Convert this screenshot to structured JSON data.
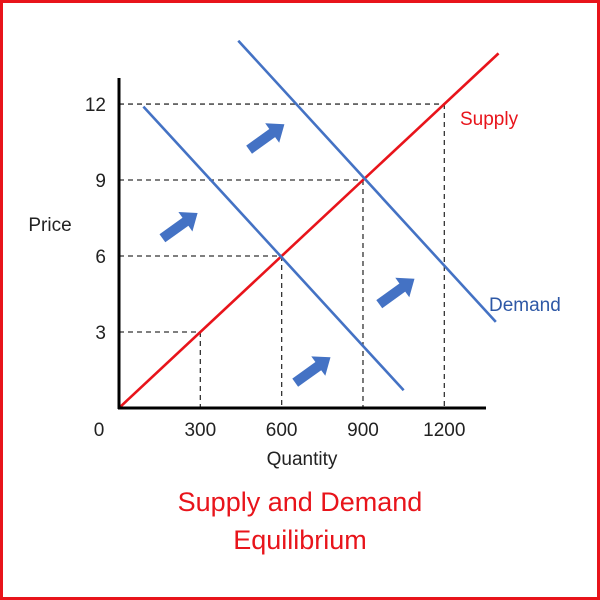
{
  "chart_data": {
    "type": "line",
    "title_lines": [
      "Supply and Demand",
      "Equilibrium"
    ],
    "xlabel": "Quantity",
    "ylabel": "Price",
    "origin_label": "0",
    "xticks": [
      {
        "value": 300,
        "label": "300"
      },
      {
        "value": 600,
        "label": "600"
      },
      {
        "value": 900,
        "label": "900"
      },
      {
        "value": 1200,
        "label": "1200"
      }
    ],
    "yticks": [
      {
        "value": 3,
        "label": "3"
      },
      {
        "value": 6,
        "label": "6"
      },
      {
        "value": 9,
        "label": "9"
      },
      {
        "value": 12,
        "label": "12"
      }
    ],
    "xlim": [
      0,
      1350
    ],
    "ylim": [
      0,
      13.5
    ],
    "grid": false,
    "series": [
      {
        "name": "Supply",
        "color": "#e8141b",
        "x": [
          0,
          1400
        ],
        "y": [
          0,
          14
        ]
      },
      {
        "name": "Demand",
        "color": "#4472c4",
        "x": [
          440,
          1390
        ],
        "y": [
          14.5,
          3.4
        ]
      },
      {
        "name": "",
        "color": "#4472c4",
        "x": [
          90,
          1050
        ],
        "y": [
          11.9,
          0.7
        ]
      }
    ],
    "equilibria": [
      {
        "x": 300,
        "y": 3
      },
      {
        "x": 600,
        "y": 6
      },
      {
        "x": 900,
        "y": 9
      },
      {
        "x": 1200,
        "y": 12
      }
    ],
    "shift_arrows": [
      {
        "from": [
          480,
          10.2
        ],
        "to": [
          610,
          11.2
        ]
      },
      {
        "from": [
          160,
          6.7
        ],
        "to": [
          290,
          7.7
        ]
      },
      {
        "from": [
          960,
          4.1
        ],
        "to": [
          1090,
          5.1
        ]
      },
      {
        "from": [
          650,
          1.0
        ],
        "to": [
          780,
          2.0
        ]
      }
    ],
    "arrow_color": "#4472c4",
    "title_color": "#e8141b",
    "border_color": "#e8141b"
  }
}
